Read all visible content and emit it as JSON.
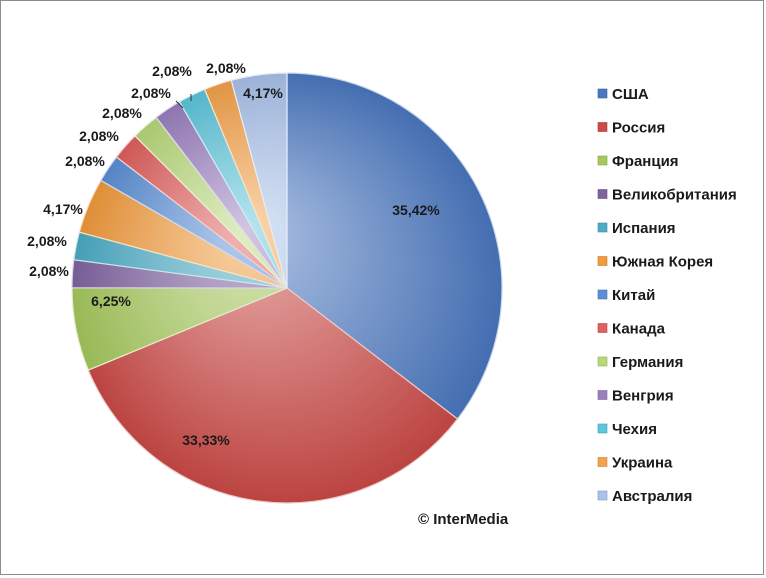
{
  "chart_data": {
    "type": "pie",
    "title": "",
    "legend_position": "right",
    "categories": [
      "США",
      "Россия",
      "Франция",
      "Великобритания",
      "Испания",
      "Южная Корея",
      "Китай",
      "Канада",
      "Германия",
      "Венгрия",
      "Чехия",
      "Украина",
      "Австралия"
    ],
    "values": [
      35.42,
      33.33,
      6.25,
      2.08,
      2.08,
      4.17,
      2.08,
      2.08,
      2.08,
      2.08,
      2.08,
      2.08,
      4.17
    ],
    "value_labels": [
      "35,42%",
      "33,33%",
      "6,25%",
      "2,08%",
      "2,08%",
      "4,17%",
      "2,08%",
      "2,08%",
      "2,08%",
      "2,08%",
      "2,08%",
      "2,08%",
      "4,17%"
    ],
    "colors": [
      "#4a78c0",
      "#cc4a47",
      "#a6c95c",
      "#8064a2",
      "#4bacc6",
      "#f29a3c",
      "#5b8fd6",
      "#e0605c",
      "#b8d97a",
      "#9a7fbf",
      "#5cc6dc",
      "#f5a24a",
      "#a9c2ea"
    ]
  },
  "watermark": "© InterMedia"
}
